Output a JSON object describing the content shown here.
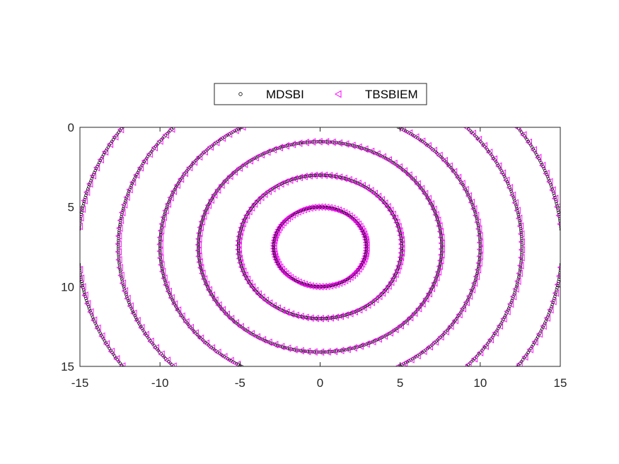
{
  "chart_data": {
    "type": "scatter",
    "title": "",
    "xlabel": "",
    "ylabel": "",
    "xlim": [
      -15,
      15
    ],
    "ylim": [
      0,
      15
    ],
    "y_direction": "reversed",
    "xticks": [
      -15,
      -10,
      -5,
      0,
      5,
      10,
      15
    ],
    "yticks": [
      0,
      5,
      10,
      15
    ],
    "xtick_labels": [
      "-15",
      "-10",
      "-5",
      "0",
      "5",
      "10",
      "15"
    ],
    "ytick_labels": [
      "0",
      "5",
      "10",
      "15"
    ],
    "grid": false,
    "legend_position": "top-center",
    "legend_orientation": "horizontal",
    "center": [
      0,
      7.5
    ],
    "contour_radii_x": [
      2.9,
      5.1,
      7.6,
      10.0,
      12.6,
      15.1,
      17.6
    ],
    "contour_radii_y": [
      2.5,
      4.5,
      6.6,
      8.6,
      10.9,
      13.0,
      15.2
    ],
    "series": [
      {
        "name": "MDSBI",
        "marker": "circle",
        "color": "#000000",
        "samples_per_ring": 300
      },
      {
        "name": "TBSBIEM",
        "marker": "triangle-left",
        "color": "#ff00ff",
        "samples_per_ring": 90
      }
    ]
  }
}
